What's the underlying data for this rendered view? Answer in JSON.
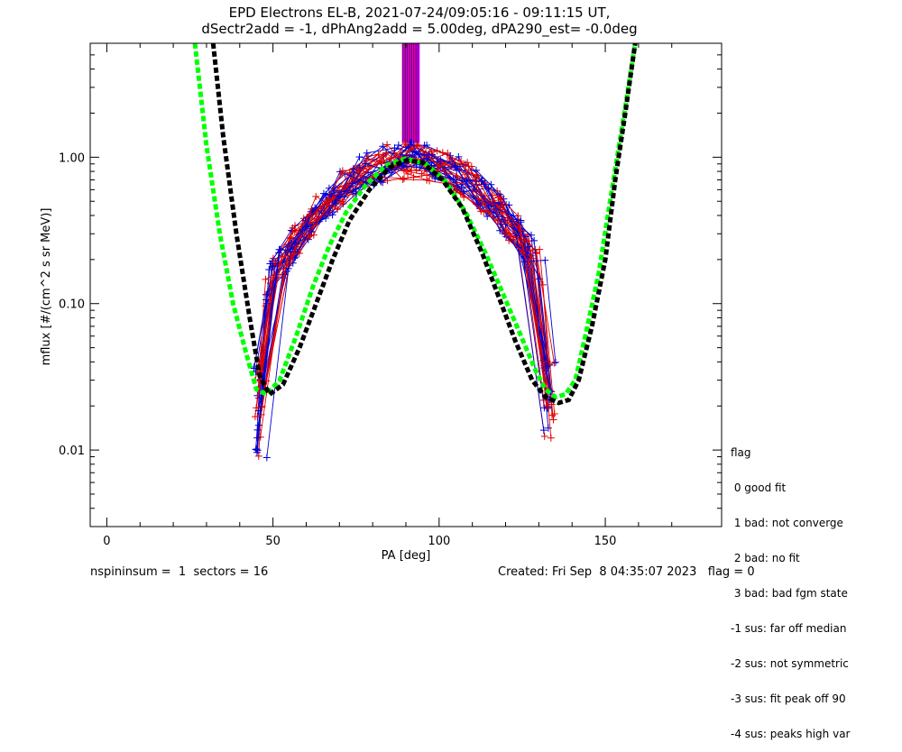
{
  "chart_data": {
    "type": "line",
    "title": "EPD Electrons EL-B, 2021-07-24/09:05:16 - 09:11:15 UT,",
    "subtitle": "dSectr2add = -1, dPhAng2add = 5.00deg, dPA290_est=  -0.0deg",
    "xlabel": "PA [deg]",
    "ylabel": "mflux [#/(cm^2 s sr MeV)]",
    "xlim": [
      -5,
      185
    ],
    "ylim": [
      0.003,
      6
    ],
    "yscale": "log",
    "xticks": [
      0,
      50,
      100,
      150
    ],
    "yticks": [
      0.01,
      0.1,
      1.0
    ],
    "ytick_labels": [
      "0.01",
      "0.10",
      "1.00"
    ],
    "grid": false,
    "fit_curves": [
      {
        "color": "#00ff00",
        "x": [
          26.5,
          30,
          34,
          38,
          42,
          45,
          48,
          52,
          57,
          62,
          67,
          72,
          78,
          84,
          90,
          96,
          102,
          108,
          114,
          119,
          124,
          129,
          132,
          135,
          138,
          141,
          144,
          148,
          152,
          156,
          159
        ],
        "y": [
          6,
          1.2,
          0.3,
          0.1,
          0.045,
          0.026,
          0.024,
          0.03,
          0.06,
          0.13,
          0.25,
          0.42,
          0.65,
          0.88,
          0.98,
          0.9,
          0.68,
          0.42,
          0.22,
          0.12,
          0.065,
          0.035,
          0.026,
          0.023,
          0.024,
          0.03,
          0.06,
          0.16,
          0.6,
          2.2,
          6
        ]
      },
      {
        "color": "#000000",
        "x": [
          32,
          35,
          39,
          43,
          46,
          49,
          53,
          58,
          63,
          68,
          73,
          79,
          85,
          90,
          95,
          101,
          107,
          113,
          118,
          123,
          128,
          132,
          136,
          139,
          142,
          146,
          150,
          153,
          156,
          159
        ],
        "y": [
          6,
          1.4,
          0.3,
          0.08,
          0.032,
          0.024,
          0.028,
          0.05,
          0.1,
          0.2,
          0.37,
          0.6,
          0.85,
          0.95,
          0.92,
          0.7,
          0.45,
          0.22,
          0.11,
          0.055,
          0.03,
          0.023,
          0.021,
          0.022,
          0.03,
          0.07,
          0.2,
          0.7,
          2,
          6
        ]
      }
    ],
    "spike": {
      "x_range": [
        89,
        94
      ],
      "colors": [
        "#ff0000",
        "#0000ff",
        "#ff00ff"
      ]
    },
    "series_style": {
      "red": "#e00000",
      "blue": "#0000d0"
    },
    "flag_legend": {
      "title": "flag",
      "items": [
        " 0 good fit",
        " 1 bad: not converge",
        " 2 bad: no fit",
        " 3 bad: bad fgm state",
        "-1 sus: far off median",
        "-2 sus: not symmetric",
        "-3 sus: fit peak off 90",
        "-4 sus: peaks high var"
      ]
    }
  },
  "footer": {
    "left": "nspininsum =  1  sectors = 16",
    "right": "Created: Fri Sep  8 04:35:07 2023   flag = 0"
  }
}
